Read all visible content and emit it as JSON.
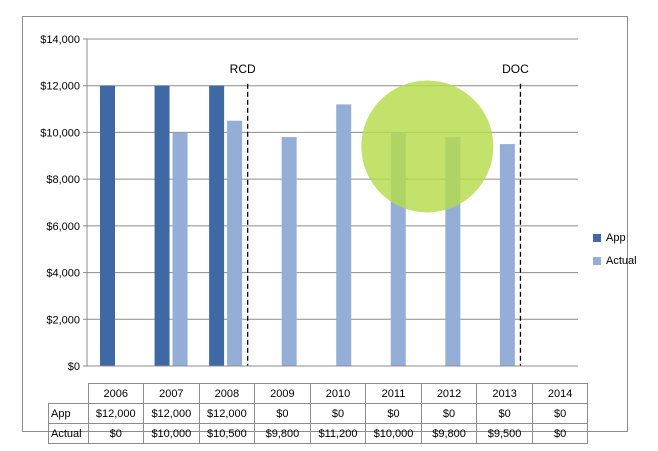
{
  "chart_data": {
    "type": "bar",
    "categories": [
      "2006",
      "2007",
      "2008",
      "2009",
      "2010",
      "2011",
      "2012",
      "2013",
      "2014"
    ],
    "series": [
      {
        "name": "App",
        "color": "#3f69a5",
        "values": [
          12000,
          12000,
          12000,
          0,
          0,
          0,
          0,
          0,
          0
        ]
      },
      {
        "name": "Actual",
        "color": "#95aed7",
        "values": [
          0,
          10000,
          10500,
          9800,
          11200,
          10000,
          9800,
          9500,
          0
        ]
      }
    ],
    "ylim": [
      0,
      14000
    ],
    "yticks": [
      0,
      2000,
      4000,
      6000,
      8000,
      10000,
      12000,
      14000
    ],
    "ytick_labels": [
      "$0",
      "$2,000",
      "$4,000",
      "$6,000",
      "$8,000",
      "$10,000",
      "$12,000",
      "$14,000"
    ],
    "grid": true,
    "legend": "right",
    "table": {
      "rows": [
        {
          "label": "App",
          "cells": [
            "$12,000",
            "$12,000",
            "$12,000",
            "$0",
            "$0",
            "$0",
            "$0",
            "$0",
            "$0"
          ]
        },
        {
          "label": "Actual",
          "cells": [
            "$0",
            "$10,000",
            "$10,500",
            "$9,800",
            "$11,200",
            "$10,000",
            "$9,800",
            "$9,500",
            "$0"
          ]
        }
      ]
    },
    "annotations": [
      {
        "text": "RCD",
        "between": [
          "2008",
          "2009"
        ]
      },
      {
        "text": "DOC",
        "between": [
          "2013",
          "2014"
        ]
      }
    ],
    "highlight": {
      "shape": "circle",
      "color": "#b5dc4c",
      "center_x": "2012",
      "center_y": 9400
    }
  }
}
